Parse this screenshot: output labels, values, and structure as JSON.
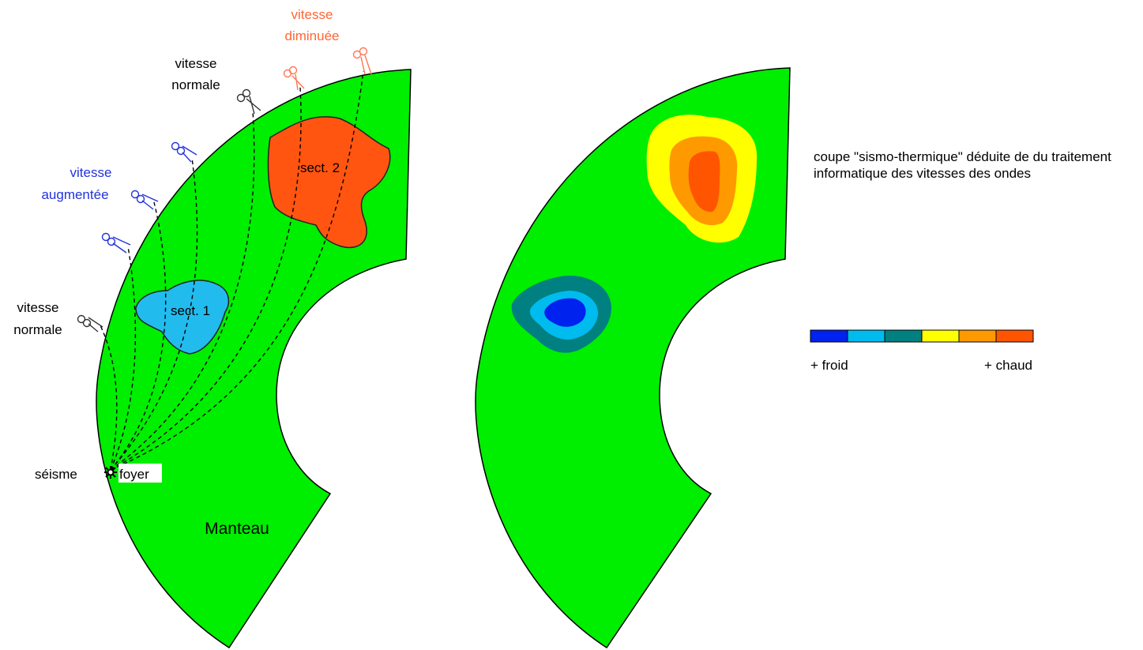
{
  "labels": {
    "vitesse_diminuee": [
      "vitesse",
      "diminuée"
    ],
    "vitesse_normale_top": [
      "vitesse",
      "normale"
    ],
    "vitesse_augmentee": [
      "vitesse",
      "augmentée"
    ],
    "vitesse_normale_left": [
      "vitesse",
      "normale"
    ],
    "seisme": "séisme",
    "foyer": "foyer",
    "sect1": "sect. 1",
    "sect2": "sect. 2",
    "manteau": "Manteau"
  },
  "description": "coupe \"sismo-thermique\" déduite de du traitement informatique des vitesses des ondes",
  "scale": {
    "left_label": "+ froid",
    "right_label": "+ chaud",
    "colors": [
      "#0022ee",
      "#00bbee",
      "#008080",
      "#ffff00",
      "#ff9900",
      "#ff5500"
    ]
  },
  "colors": {
    "mantle": "#00ee00",
    "normal": "#000000",
    "increased": "#2233dd",
    "decreased": "#ff6633",
    "sect1": "#22bbee",
    "sect2": "#ff5511"
  }
}
